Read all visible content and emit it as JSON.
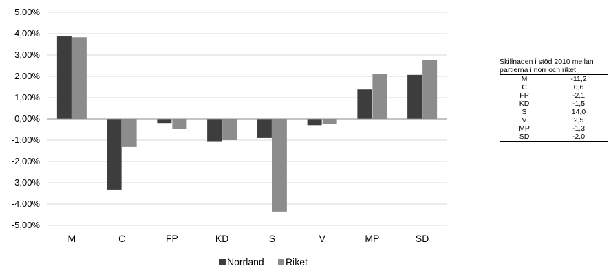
{
  "chart_data": {
    "type": "bar",
    "categories": [
      "M",
      "C",
      "FP",
      "KD",
      "S",
      "V",
      "MP",
      "SD"
    ],
    "series": [
      {
        "name": "Norrland",
        "color": "#3d3d3d",
        "values": [
          3.87,
          -3.32,
          -0.2,
          -1.05,
          -0.9,
          -0.3,
          1.38,
          2.07
        ]
      },
      {
        "name": "Riket",
        "color": "#8c8c8c",
        "values": [
          3.83,
          -1.32,
          -0.47,
          -1.0,
          -4.35,
          -0.25,
          2.1,
          2.75
        ]
      }
    ],
    "yticks": [
      "5,00%",
      "4,00%",
      "3,00%",
      "2,00%",
      "1,00%",
      "0,00%",
      "-1,00%",
      "-2,00%",
      "-3,00%",
      "-4,00%",
      "-5,00%"
    ],
    "ylim": [
      -5,
      5
    ],
    "grid": true,
    "legend_position": "bottom-center"
  },
  "side_table": {
    "caption_line1": "Skillnaden i stöd 2010 mellan",
    "caption_line2": "partierna i norr och riket",
    "rows": [
      {
        "party": "M",
        "value": "-11,2"
      },
      {
        "party": "C",
        "value": "0,6"
      },
      {
        "party": "FP",
        "value": "-2,1"
      },
      {
        "party": "KD",
        "value": "-1,5"
      },
      {
        "party": "S",
        "value": "14,0"
      },
      {
        "party": "V",
        "value": "2,5"
      },
      {
        "party": "MP",
        "value": "-1,3"
      },
      {
        "party": "SD",
        "value": "-2,0"
      }
    ]
  }
}
